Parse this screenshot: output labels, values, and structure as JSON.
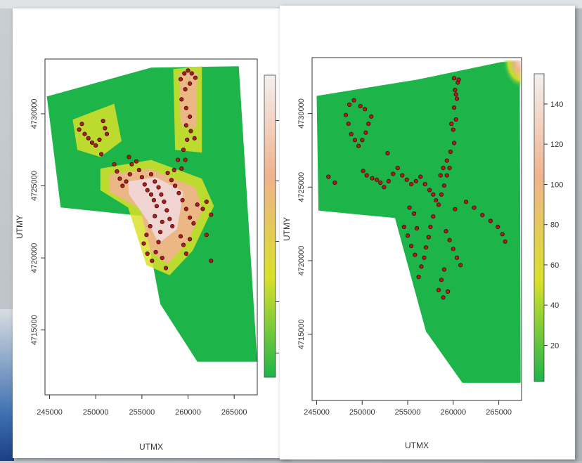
{
  "colors": {
    "green": "#1db44a",
    "yellow": "#d9e02a",
    "peach": "#efb38f",
    "pink": "#f2d8dc",
    "light": "#f4efef",
    "point_fill": "#b21c1c",
    "point_stroke": "#3b0a0a"
  },
  "chart_data": [
    {
      "type": "heatmap",
      "xlabel": "UTMX",
      "ylabel": "UTMY",
      "x_ticks": [
        "245000",
        "250000",
        "255000",
        "260000",
        "265000"
      ],
      "y_ticks": [
        "4715000",
        "4720000",
        "4725000",
        "4730000"
      ],
      "xlim": [
        244500,
        267500
      ],
      "ylim": [
        4710500,
        4733800
      ],
      "colorbar_ticks": [],
      "colorscale": [
        "#1db44a",
        "#d9e02a",
        "#efb38f",
        "#f4efef"
      ],
      "region": [
        [
          244700,
          4731200
        ],
        [
          256000,
          4733200
        ],
        [
          265500,
          4733300
        ],
        [
          267500,
          4712800
        ],
        [
          261000,
          4712800
        ],
        [
          257000,
          4716800
        ],
        [
          255200,
          4722900
        ],
        [
          246200,
          4723500
        ]
      ],
      "points": [
        [
          248200,
          4728900
        ],
        [
          248500,
          4729300
        ],
        [
          248800,
          4728600
        ],
        [
          249200,
          4728300
        ],
        [
          249600,
          4728000
        ],
        [
          250000,
          4727800
        ],
        [
          250400,
          4728200
        ],
        [
          250800,
          4729500
        ],
        [
          251000,
          4729000
        ],
        [
          251200,
          4728600
        ],
        [
          250600,
          4727200
        ],
        [
          252000,
          4726500
        ],
        [
          252300,
          4726000
        ],
        [
          252600,
          4725500
        ],
        [
          252900,
          4725000
        ],
        [
          253300,
          4725300
        ],
        [
          253700,
          4725800
        ],
        [
          253600,
          4727000
        ],
        [
          253900,
          4726500
        ],
        [
          254400,
          4726700
        ],
        [
          254700,
          4726100
        ],
        [
          255000,
          4725600
        ],
        [
          255300,
          4725100
        ],
        [
          255600,
          4724700
        ],
        [
          256000,
          4724400
        ],
        [
          256300,
          4724000
        ],
        [
          256600,
          4723600
        ],
        [
          256000,
          4725800
        ],
        [
          256400,
          4725300
        ],
        [
          256800,
          4724900
        ],
        [
          257100,
          4724400
        ],
        [
          257400,
          4723900
        ],
        [
          257700,
          4723300
        ],
        [
          258000,
          4722700
        ],
        [
          258300,
          4722200
        ],
        [
          257800,
          4725900
        ],
        [
          258200,
          4725400
        ],
        [
          258600,
          4725000
        ],
        [
          259000,
          4724500
        ],
        [
          259400,
          4724000
        ],
        [
          259800,
          4723400
        ],
        [
          260200,
          4722800
        ],
        [
          260600,
          4722400
        ],
        [
          261000,
          4723700
        ],
        [
          261600,
          4723400
        ],
        [
          262000,
          4723900
        ],
        [
          262500,
          4723000
        ],
        [
          257200,
          4722500
        ],
        [
          257000,
          4721800
        ],
        [
          256800,
          4721100
        ],
        [
          256500,
          4720400
        ],
        [
          257200,
          4720000
        ],
        [
          257600,
          4719300
        ],
        [
          256400,
          4722900
        ],
        [
          255900,
          4722200
        ],
        [
          255500,
          4721600
        ],
        [
          255200,
          4721000
        ],
        [
          255600,
          4720300
        ],
        [
          256100,
          4719800
        ],
        [
          259200,
          4721500
        ],
        [
          259500,
          4720900
        ],
        [
          259800,
          4720300
        ],
        [
          260200,
          4721300
        ],
        [
          262000,
          4721600
        ],
        [
          262500,
          4719800
        ],
        [
          259200,
          4732400
        ],
        [
          259600,
          4732800
        ],
        [
          260000,
          4733000
        ],
        [
          260400,
          4732800
        ],
        [
          260800,
          4732500
        ],
        [
          260200,
          4732100
        ],
        [
          259700,
          4731700
        ],
        [
          259300,
          4731000
        ],
        [
          259800,
          4730400
        ],
        [
          260200,
          4729800
        ],
        [
          259800,
          4729200
        ],
        [
          260300,
          4728800
        ],
        [
          260700,
          4728300
        ],
        [
          259900,
          4728200
        ],
        [
          259500,
          4727500
        ],
        [
          259700,
          4726800
        ],
        [
          259300,
          4726200
        ],
        [
          258900,
          4726800
        ],
        [
          258500,
          4726100
        ]
      ]
    },
    {
      "type": "heatmap",
      "xlabel": "UTMX",
      "ylabel": "UTMY",
      "x_ticks": [
        "245000",
        "250000",
        "255000",
        "260000",
        "265000"
      ],
      "y_ticks": [
        "4715000",
        "4720000",
        "4725000",
        "4730000"
      ],
      "xlim": [
        244500,
        267500
      ],
      "ylim": [
        4710500,
        4733800
      ],
      "colorbar_ticks": [
        "20",
        "40",
        "60",
        "80",
        "100",
        "120",
        "140"
      ],
      "colorbar_range": [
        2,
        155
      ],
      "colorscale": [
        "#1db44a",
        "#d9e02a",
        "#efb38f",
        "#f4efef"
      ],
      "region": [
        [
          245000,
          4731200
        ],
        [
          256000,
          4732300
        ],
        [
          265300,
          4733500
        ],
        [
          267300,
          4733500
        ],
        [
          267400,
          4711700
        ],
        [
          261000,
          4711700
        ],
        [
          257000,
          4715200
        ],
        [
          253600,
          4722900
        ],
        [
          245200,
          4723400
        ]
      ],
      "points": [
        [
          248200,
          4729900
        ],
        [
          248500,
          4729300
        ],
        [
          248800,
          4728600
        ],
        [
          249200,
          4728200
        ],
        [
          249600,
          4727800
        ],
        [
          250000,
          4728200
        ],
        [
          250400,
          4728700
        ],
        [
          250700,
          4729300
        ],
        [
          251000,
          4729800
        ],
        [
          250300,
          4730300
        ],
        [
          249800,
          4730500
        ],
        [
          250100,
          4726100
        ],
        [
          250500,
          4725800
        ],
        [
          251100,
          4725600
        ],
        [
          251600,
          4725500
        ],
        [
          252000,
          4725300
        ],
        [
          252400,
          4725000
        ],
        [
          252900,
          4725400
        ],
        [
          253400,
          4725900
        ],
        [
          253900,
          4726300
        ],
        [
          254400,
          4725800
        ],
        [
          254900,
          4725500
        ],
        [
          255400,
          4725200
        ],
        [
          255900,
          4725400
        ],
        [
          256400,
          4725700
        ],
        [
          256900,
          4725200
        ],
        [
          257400,
          4724800
        ],
        [
          257800,
          4724500
        ],
        [
          258100,
          4724100
        ],
        [
          258400,
          4723800
        ],
        [
          258700,
          4724500
        ],
        [
          259000,
          4725100
        ],
        [
          259300,
          4725800
        ],
        [
          258600,
          4725800
        ],
        [
          258900,
          4726300
        ],
        [
          259300,
          4726800
        ],
        [
          259700,
          4727400
        ],
        [
          260100,
          4728000
        ],
        [
          260000,
          4728900
        ],
        [
          260300,
          4729600
        ],
        [
          260100,
          4730400
        ],
        [
          260400,
          4731000
        ],
        [
          260200,
          4731600
        ],
        [
          260500,
          4732100
        ],
        [
          260100,
          4732400
        ],
        [
          260600,
          4732300
        ],
        [
          260300,
          4731300
        ],
        [
          259800,
          4729300
        ],
        [
          259600,
          4726300
        ],
        [
          257800,
          4723000
        ],
        [
          257500,
          4722300
        ],
        [
          257300,
          4721600
        ],
        [
          257000,
          4720900
        ],
        [
          256800,
          4720200
        ],
        [
          256500,
          4719600
        ],
        [
          256200,
          4718900
        ],
        [
          255800,
          4720400
        ],
        [
          255400,
          4721000
        ],
        [
          255000,
          4721700
        ],
        [
          254600,
          4722300
        ],
        [
          255200,
          4723600
        ],
        [
          255700,
          4723200
        ],
        [
          256000,
          4722200
        ],
        [
          259200,
          4722000
        ],
        [
          259600,
          4721400
        ],
        [
          260000,
          4720800
        ],
        [
          260400,
          4720200
        ],
        [
          260800,
          4719700
        ],
        [
          259000,
          4719400
        ],
        [
          258700,
          4718700
        ],
        [
          258400,
          4718000
        ],
        [
          258900,
          4717500
        ],
        [
          259400,
          4717900
        ],
        [
          260200,
          4723500
        ],
        [
          261400,
          4724000
        ],
        [
          262300,
          4723600
        ],
        [
          263200,
          4723100
        ],
        [
          264100,
          4722700
        ],
        [
          264900,
          4722300
        ],
        [
          265400,
          4721800
        ],
        [
          265700,
          4721300
        ],
        [
          247000,
          4725300
        ],
        [
          246300,
          4725700
        ],
        [
          249100,
          4730900
        ],
        [
          248600,
          4730600
        ],
        [
          252800,
          4727300
        ]
      ]
    }
  ]
}
